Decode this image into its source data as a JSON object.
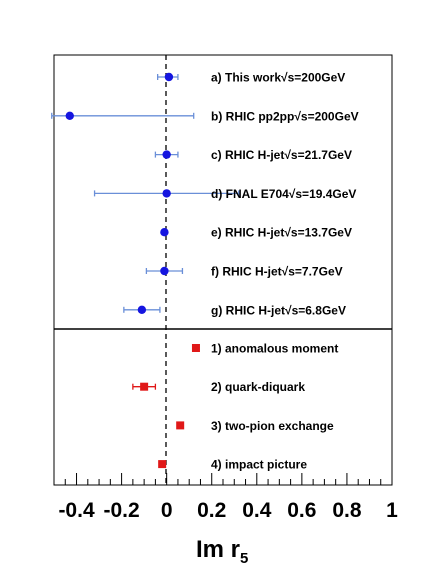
{
  "chart_data": {
    "type": "scatter",
    "xlabel": "Im r",
    "xlabel_sub": "5",
    "xlim": [
      -0.5,
      1.0
    ],
    "xticks": [
      "-0.4",
      "-0.2",
      "0",
      "0.2",
      "0.4",
      "0.6",
      "0.8",
      "1"
    ],
    "reference_line_x": 0,
    "grid": false,
    "measurements": [
      {
        "label": "a) This work√s=200GeV",
        "x": 0.01,
        "err_lo": 0.05,
        "err_hi": 0.04
      },
      {
        "label": "b) RHIC pp2pp√s=200GeV",
        "x": -0.43,
        "err_lo": 0.08,
        "err_hi": 0.55
      },
      {
        "label": "c) RHIC H-jet√s=21.7GeV",
        "x": 0.0,
        "err_lo": 0.05,
        "err_hi": 0.05
      },
      {
        "label": "d) FNAL E704√s=19.4GeV",
        "x": 0.0,
        "err_lo": 0.32,
        "err_hi": 0.32
      },
      {
        "label": "e) RHIC H-jet√s=13.7GeV",
        "x": -0.01,
        "err_lo": 0.0,
        "err_hi": 0.0
      },
      {
        "label": "f) RHIC H-jet√s=7.7GeV",
        "x": -0.01,
        "err_lo": 0.08,
        "err_hi": 0.08
      },
      {
        "label": "g) RHIC H-jet√s=6.8GeV",
        "x": -0.11,
        "err_lo": 0.08,
        "err_hi": 0.08
      }
    ],
    "models": [
      {
        "label": "1) anomalous moment",
        "x": 0.13,
        "err_lo": 0.0,
        "err_hi": 0.0
      },
      {
        "label": "2) quark-diquark",
        "x": -0.1,
        "err_lo": 0.05,
        "err_hi": 0.05
      },
      {
        "label": "3) two-pion exchange",
        "x": 0.06,
        "err_lo": 0.0,
        "err_hi": 0.0
      },
      {
        "label": "4) impact picture",
        "x": -0.02,
        "err_lo": 0.0,
        "err_hi": 0.0
      }
    ],
    "colors": {
      "measurement": "#1515e0",
      "measurement_err": "#6a8fd8",
      "model": "#e01818",
      "frame": "#000000",
      "divider": "#000000"
    }
  }
}
